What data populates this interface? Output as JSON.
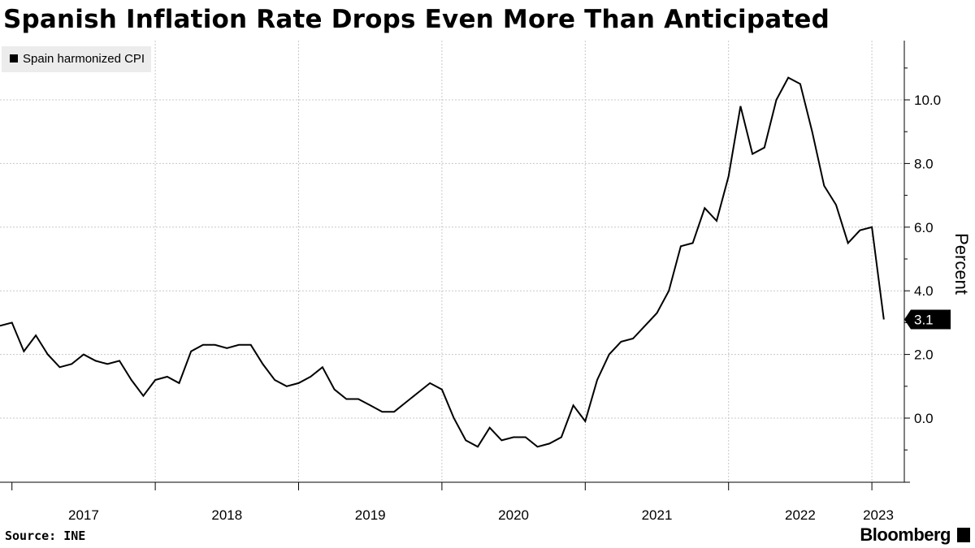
{
  "header": {
    "title": "Spanish Inflation Rate Drops Even More Than Anticipated"
  },
  "footer": {
    "source": "Source: INE",
    "brand": "Bloomberg"
  },
  "colors": {
    "line": "#000000",
    "grid": "#c8c8c8",
    "legend_bg": "#ececec"
  },
  "chart_data": {
    "type": "line",
    "title": "Spanish Inflation Rate Drops Even More Than Anticipated",
    "xlabel": "",
    "ylabel": "Percent",
    "legend": {
      "position": "top-left",
      "entries": [
        "Spain harmonized CPI"
      ]
    },
    "x_ticks": [
      "2017",
      "2018",
      "2019",
      "2020",
      "2021",
      "2022",
      "2023"
    ],
    "y_ticks": [
      "0.0",
      "2.0",
      "4.0",
      "6.0",
      "8.0",
      "10.0"
    ],
    "y_tick_values": [
      0,
      2,
      4,
      6,
      8,
      10
    ],
    "ylim": [
      -2,
      11.8
    ],
    "grid": true,
    "last_value_label": "3.1",
    "series": [
      {
        "name": "Spain harmonized CPI",
        "start": "2016-12",
        "frequency": "monthly",
        "values": [
          2.9,
          3.0,
          2.1,
          2.6,
          2.0,
          1.6,
          1.7,
          2.0,
          1.8,
          1.7,
          1.8,
          1.2,
          0.7,
          1.2,
          1.3,
          1.1,
          2.1,
          2.3,
          2.3,
          2.2,
          2.3,
          2.3,
          1.7,
          1.2,
          1.0,
          1.1,
          1.3,
          1.6,
          0.9,
          0.6,
          0.6,
          0.4,
          0.2,
          0.2,
          0.5,
          0.8,
          1.1,
          0.9,
          0.0,
          -0.7,
          -0.9,
          -0.3,
          -0.7,
          -0.6,
          -0.6,
          -0.9,
          -0.8,
          -0.6,
          0.4,
          -0.1,
          1.2,
          2.0,
          2.4,
          2.5,
          2.9,
          3.3,
          4.0,
          5.4,
          5.5,
          6.6,
          6.2,
          7.6,
          9.8,
          8.3,
          8.5,
          10.0,
          10.7,
          10.5,
          9.0,
          7.3,
          6.7,
          5.5,
          5.9,
          6.0,
          3.1
        ]
      }
    ]
  }
}
